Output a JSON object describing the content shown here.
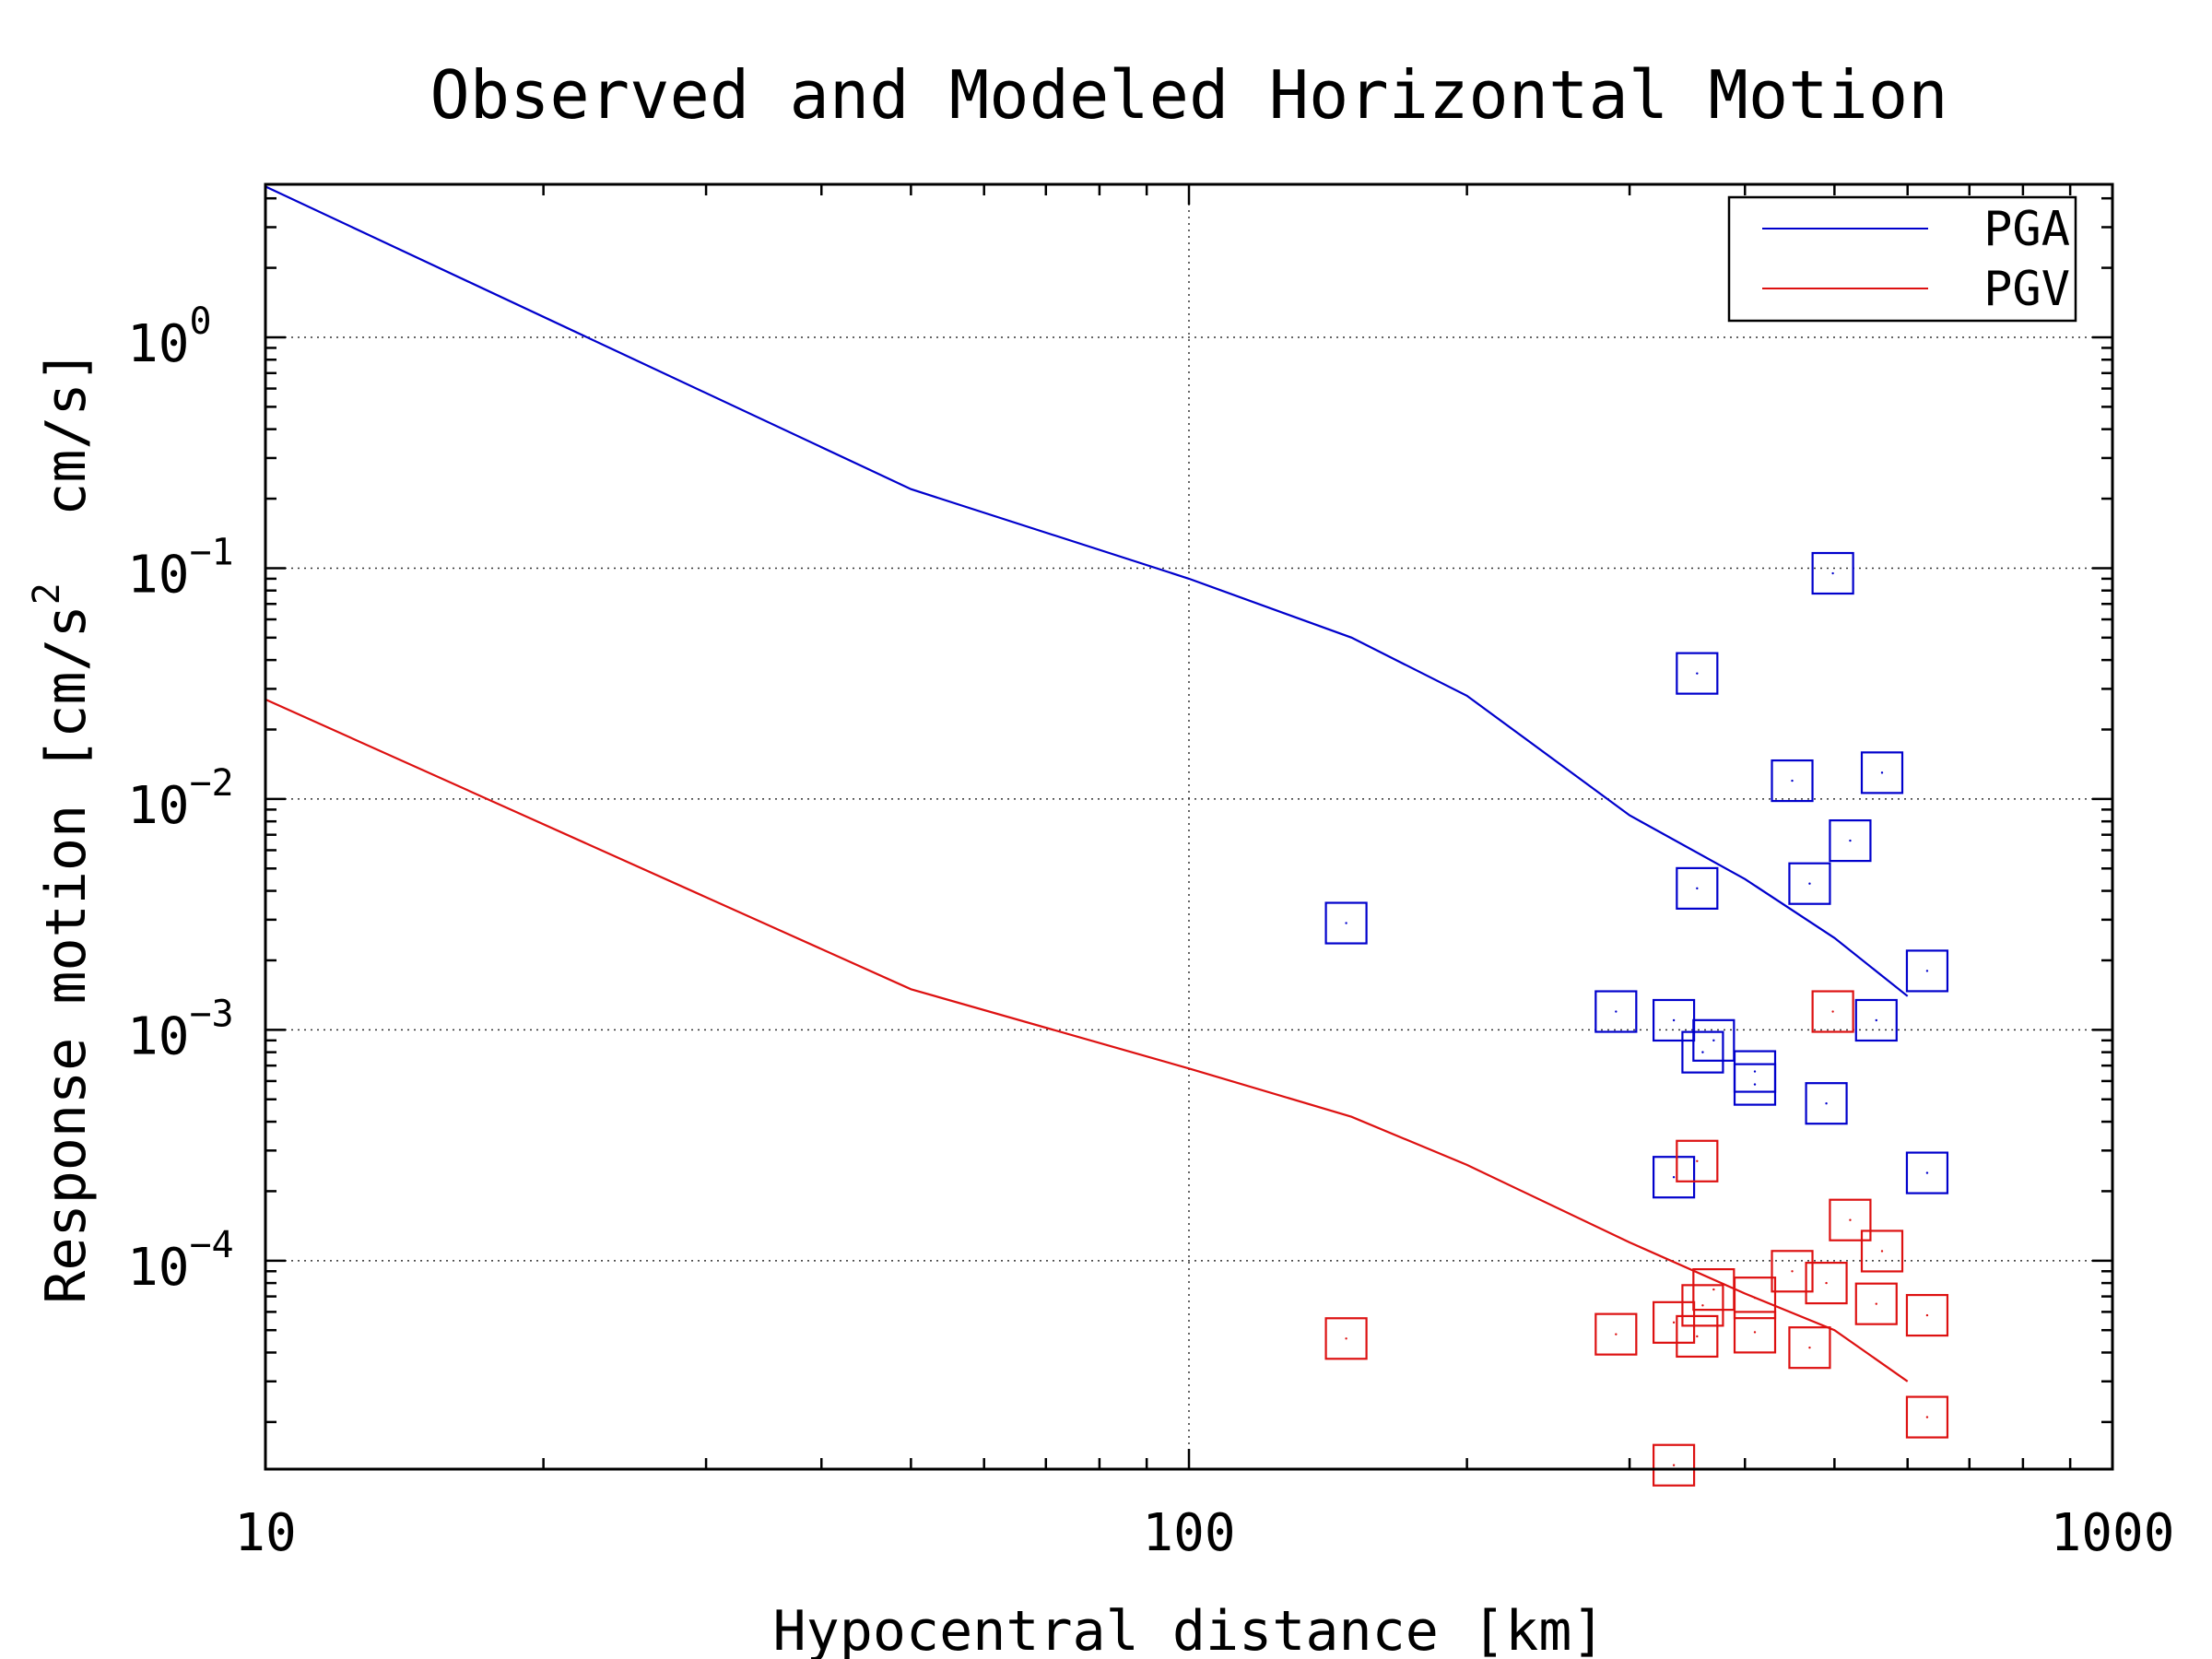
{
  "chart_data": {
    "type": "scatter",
    "title": "Observed and Modeled Horizontal Motion",
    "xlabel": "Hypocentral distance [km]",
    "ylabel_parts": [
      "Response motion [cm/s",
      "2",
      "  cm/s]"
    ],
    "x_scale": "log",
    "y_scale": "log",
    "xlim": [
      10,
      1000
    ],
    "ylim": [
      1.25e-05,
      4.6
    ],
    "x_ticks": [
      {
        "value": 10,
        "label": "10"
      },
      {
        "value": 100,
        "label": "100"
      },
      {
        "value": 1000,
        "label": "1000"
      }
    ],
    "y_ticks": [
      {
        "value": 1,
        "base": "10",
        "exp": "0"
      },
      {
        "value": 0.1,
        "base": "10",
        "exp": "−1"
      },
      {
        "value": 0.01,
        "base": "10",
        "exp": "−2"
      },
      {
        "value": 0.001,
        "base": "10",
        "exp": "−3"
      },
      {
        "value": 0.0001,
        "base": "10",
        "exp": "−4"
      }
    ],
    "grid": true,
    "legend_position": "top-right",
    "series": [
      {
        "name": "PGA",
        "color": "#0000cc",
        "model": [
          [
            10,
            4.5
          ],
          [
            50,
            0.22
          ],
          [
            100,
            0.09
          ],
          [
            150,
            0.05
          ],
          [
            200,
            0.028
          ],
          [
            300,
            0.0085
          ],
          [
            400,
            0.0045
          ],
          [
            500,
            0.0025
          ],
          [
            600,
            0.0014
          ]
        ],
        "observed": [
          [
            148,
            0.0029
          ],
          [
            290,
            0.0012
          ],
          [
            335,
            0.0011
          ],
          [
            355,
            0.035
          ],
          [
            355,
            0.0041
          ],
          [
            360,
            0.0008
          ],
          [
            370,
            0.0009
          ],
          [
            410,
            0.00058
          ],
          [
            410,
            0.00066
          ],
          [
            450,
            0.012
          ],
          [
            470,
            0.0043
          ],
          [
            490,
            0.00048
          ],
          [
            498,
            0.095
          ],
          [
            520,
            0.0066
          ],
          [
            555,
            0.0011
          ],
          [
            563,
            0.013
          ],
          [
            630,
            0.0018
          ],
          [
            630,
            0.00024
          ],
          [
            335,
            0.00023
          ]
        ]
      },
      {
        "name": "PGV",
        "color": "#dd1111",
        "model": [
          [
            10,
            0.027
          ],
          [
            50,
            0.0015
          ],
          [
            100,
            0.00068
          ],
          [
            150,
            0.00042
          ],
          [
            200,
            0.00026
          ],
          [
            300,
            0.00012
          ],
          [
            400,
            7.2e-05
          ],
          [
            500,
            5e-05
          ],
          [
            600,
            3e-05
          ]
        ],
        "observed": [
          [
            148,
            4.6e-05
          ],
          [
            290,
            4.8e-05
          ],
          [
            335,
            5.4e-05
          ],
          [
            335,
            1.3e-05
          ],
          [
            355,
            4.7e-05
          ],
          [
            355,
            0.00027
          ],
          [
            360,
            6.4e-05
          ],
          [
            370,
            7.5e-05
          ],
          [
            410,
            6.9e-05
          ],
          [
            410,
            4.9e-05
          ],
          [
            450,
            9e-05
          ],
          [
            470,
            4.2e-05
          ],
          [
            490,
            8e-05
          ],
          [
            498,
            0.0012
          ],
          [
            520,
            0.00015
          ],
          [
            555,
            6.5e-05
          ],
          [
            563,
            0.00011
          ],
          [
            630,
            5.8e-05
          ],
          [
            630,
            2.1e-05
          ]
        ]
      }
    ]
  }
}
